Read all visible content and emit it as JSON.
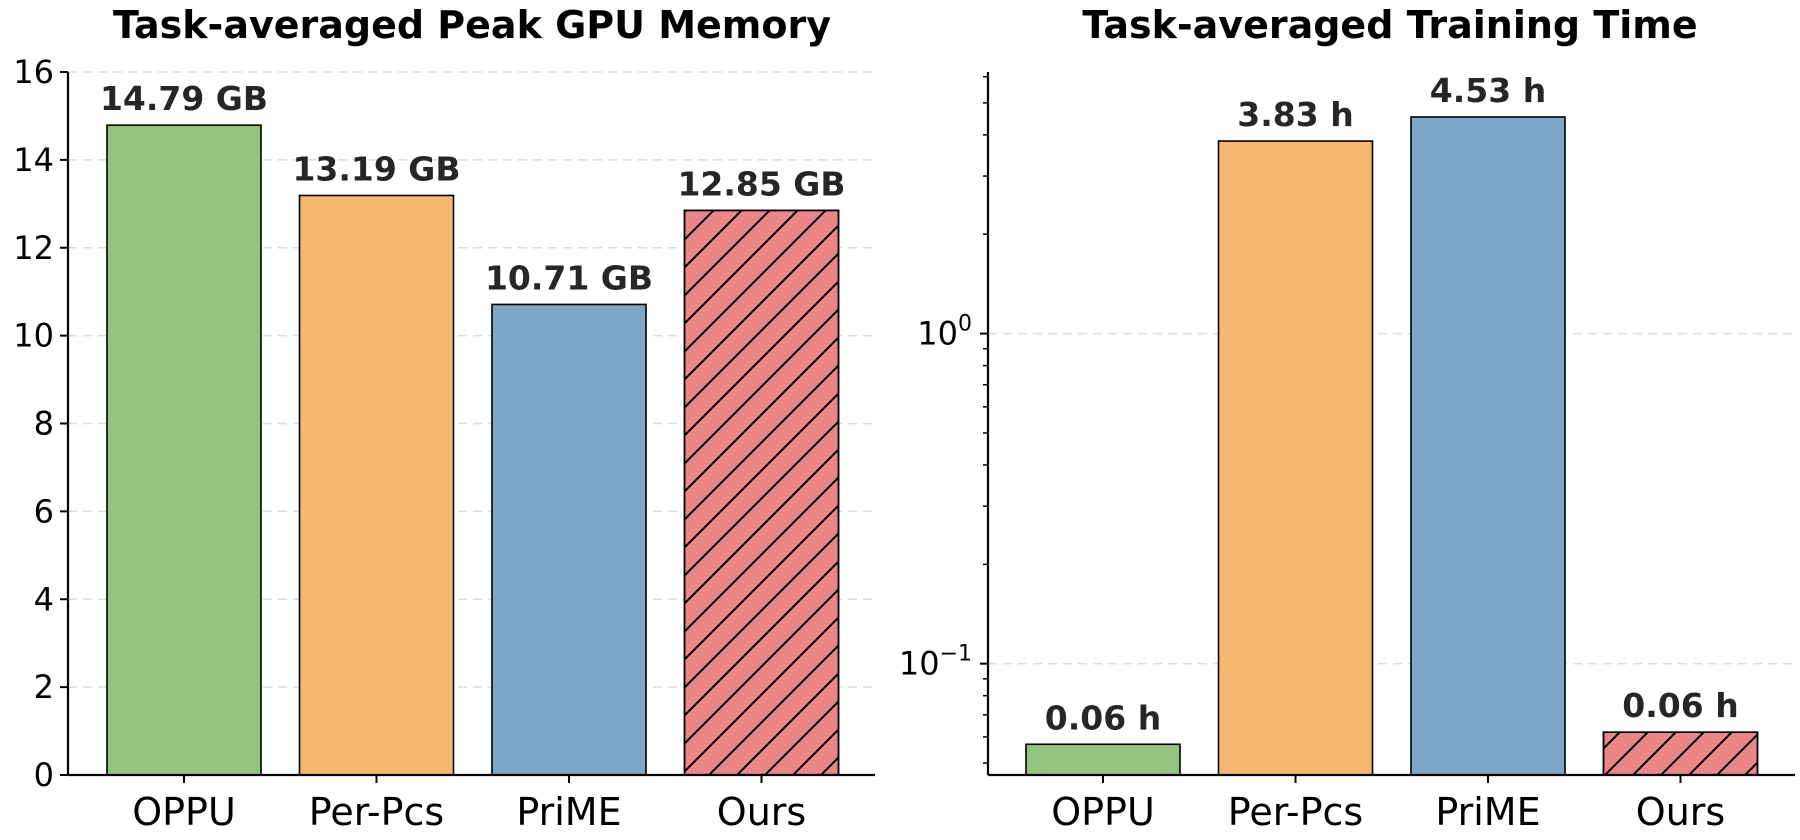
{
  "chart_data": [
    {
      "type": "bar",
      "title": "Task-averaged Peak GPU Memory",
      "categories": [
        "OPPU",
        "Per-Pcs",
        "PriME",
        "Ours"
      ],
      "values": [
        14.79,
        13.19,
        10.71,
        12.85
      ],
      "data_labels": [
        "14.79 GB",
        "13.19 GB",
        "10.71 GB",
        "12.85 GB"
      ],
      "colors": [
        "#93c47d",
        "#f4b870",
        "#7ea7c8",
        "#ea868a"
      ],
      "hatched": [
        false,
        false,
        false,
        true
      ],
      "yscale": "linear",
      "ylim": [
        0,
        16
      ],
      "yticks": [
        0,
        2,
        4,
        6,
        8,
        10,
        12,
        14,
        16
      ],
      "ytick_labels": [
        "0",
        "2",
        "4",
        "6",
        "8",
        "10",
        "12",
        "14",
        "16"
      ],
      "grid": "y-dashed",
      "xlabel": "",
      "ylabel": ""
    },
    {
      "type": "bar",
      "title": "Task-averaged Training Time",
      "categories": [
        "OPPU",
        "Per-Pcs",
        "PriME",
        "Ours"
      ],
      "values": [
        0.057,
        3.83,
        4.53,
        0.062
      ],
      "data_labels": [
        "0.06 h",
        "3.83 h",
        "4.53 h",
        "0.06 h"
      ],
      "colors": [
        "#93c47d",
        "#f4b870",
        "#7ea7c8",
        "#ea868a"
      ],
      "hatched": [
        false,
        false,
        false,
        true
      ],
      "yscale": "log",
      "ylim": [
        0.046,
        6.2
      ],
      "yticks": [
        0.1,
        1
      ],
      "ytick_labels": [
        [
          "10",
          "−1"
        ],
        [
          "10",
          "0"
        ]
      ],
      "grid": "y-dashed",
      "xlabel": "",
      "ylabel": ""
    }
  ]
}
